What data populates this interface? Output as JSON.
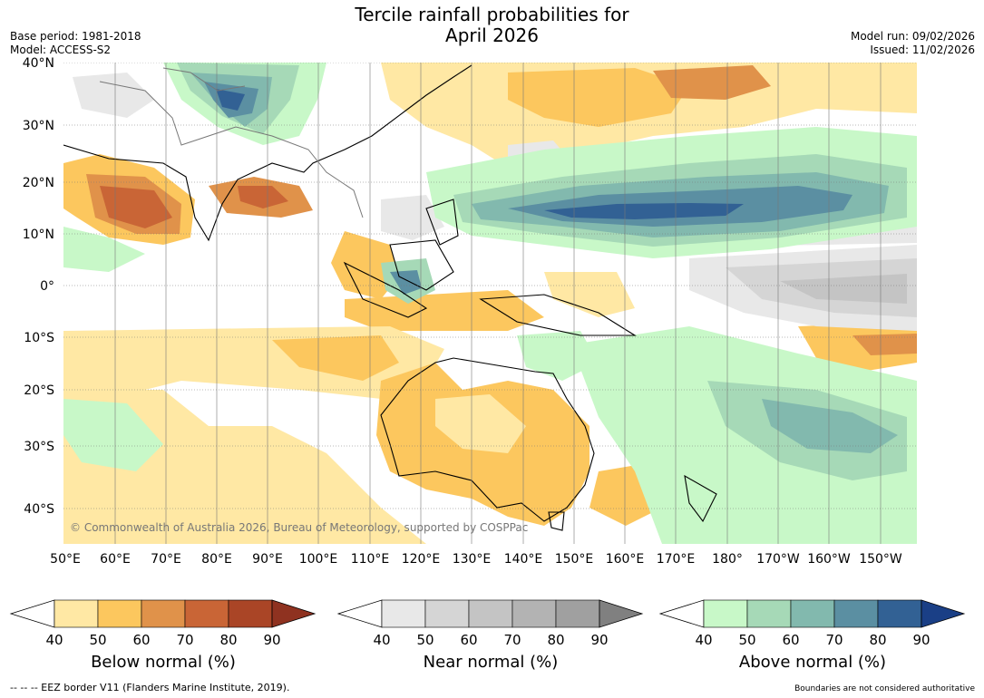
{
  "header": {
    "title_line1": "Tercile rainfall probabilities for",
    "title_line2": "April 2026",
    "base_period": "Base period: 1981-2018",
    "model": "Model: ACCESS-S2",
    "model_run": "Model run: 09/02/2026",
    "issued": "Issued: 11/02/2026"
  },
  "map": {
    "lat_labels": [
      "40°N",
      "30°N",
      "20°N",
      "10°N",
      "0°",
      "10°S",
      "20°S",
      "30°S",
      "40°S"
    ],
    "lon_labels": [
      "50°E",
      "60°E",
      "70°E",
      "80°E",
      "90°E",
      "100°E",
      "110°E",
      "120°E",
      "130°E",
      "140°E",
      "150°E",
      "160°E",
      "170°E",
      "180°",
      "170°W",
      "160°W",
      "150°W"
    ],
    "copyright": "© Commonwealth of Australia 2026, Bureau of Meteorology, supported by COSPPac"
  },
  "colorbars": [
    {
      "title": "Below normal (%)",
      "ticks": [
        "40",
        "50",
        "60",
        "70",
        "80",
        "90"
      ],
      "colors": [
        "#ffe8a4",
        "#fcc75e",
        "#e0924a",
        "#c96536",
        "#aa4526"
      ],
      "extend_color": "#8f3220"
    },
    {
      "title": "Near normal (%)",
      "ticks": [
        "40",
        "50",
        "60",
        "70",
        "80",
        "90"
      ],
      "colors": [
        "#e8e8e8",
        "#d5d5d5",
        "#c4c4c4",
        "#b3b3b3",
        "#a0a0a0"
      ],
      "extend_color": "#808080"
    },
    {
      "title": "Above normal (%)",
      "ticks": [
        "40",
        "50",
        "60",
        "70",
        "80",
        "90"
      ],
      "colors": [
        "#c8f8c8",
        "#a6d9b7",
        "#82b9ae",
        "#5b8fa2",
        "#326194"
      ],
      "extend_color": "#1a3f86"
    }
  ],
  "footer": {
    "eez": "--  --  -- EEZ border V11 (Flanders Marine Institute, 2019).",
    "disclaimer": "Boundaries are not considered authoritative"
  }
}
